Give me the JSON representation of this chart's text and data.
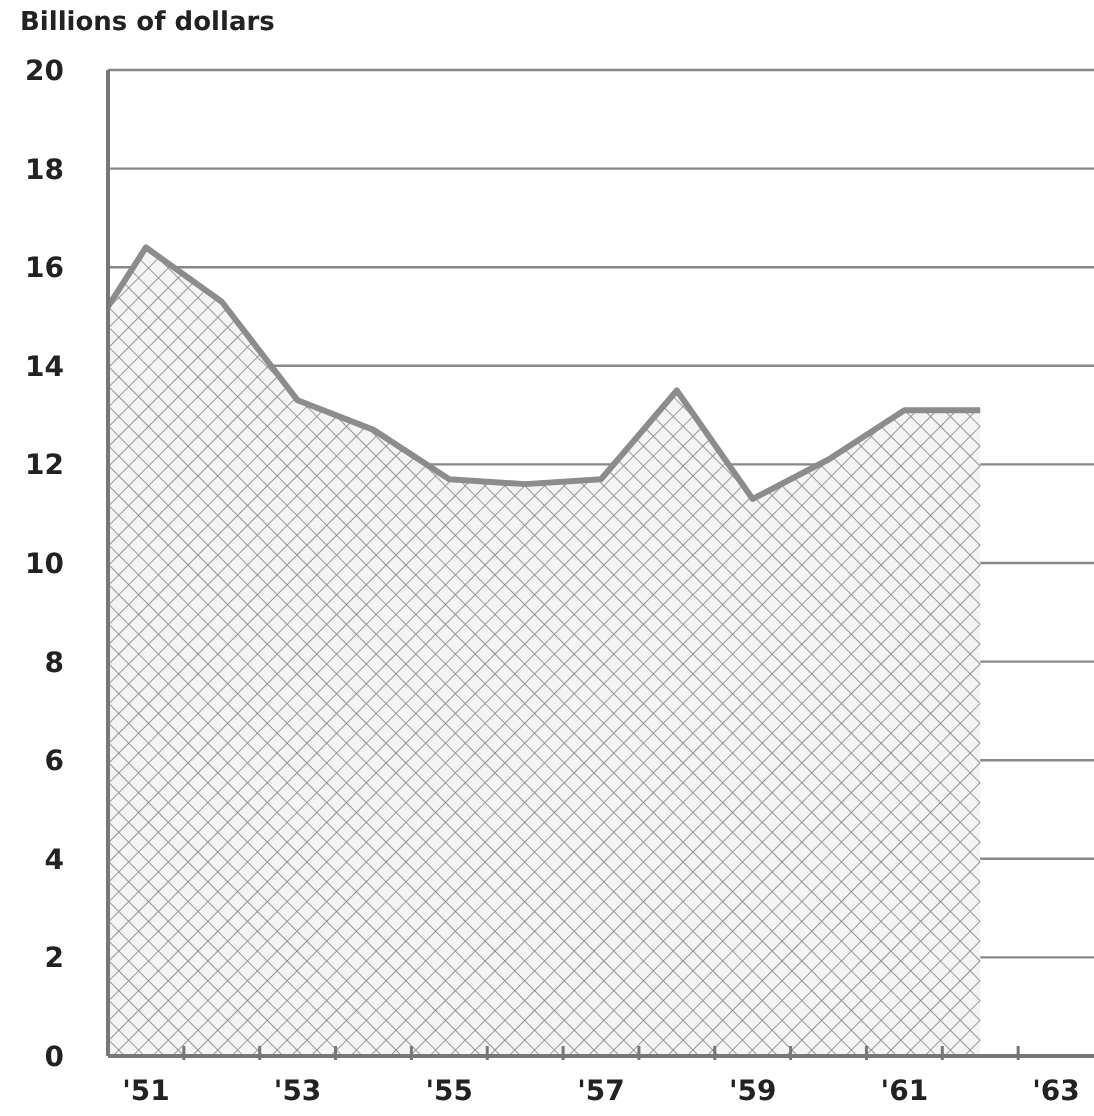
{
  "chart_data": {
    "type": "area",
    "ylabel": "Billions of dollars",
    "x": [
      1950.5,
      1951,
      1952,
      1953,
      1954,
      1955,
      1956,
      1957,
      1958,
      1959,
      1960,
      1961,
      1962
    ],
    "series": [
      {
        "color": "#8c8c8c",
        "values": [
          15.2,
          16.4,
          15.3,
          13.3,
          12.7,
          11.7,
          11.6,
          11.7,
          13.5,
          11.3,
          12.1,
          13.1,
          13.1
        ]
      }
    ],
    "xlim": [
      1950.5,
      1963.5
    ],
    "xticks": [
      {
        "value": 1951,
        "label": "'51"
      },
      {
        "value": 1951.5,
        "label": null
      },
      {
        "value": 1952.5,
        "label": null
      },
      {
        "value": 1953,
        "label": "'53"
      },
      {
        "value": 1953.5,
        "label": null
      },
      {
        "value": 1954.5,
        "label": null
      },
      {
        "value": 1955,
        "label": "'55"
      },
      {
        "value": 1955.5,
        "label": null
      },
      {
        "value": 1956.5,
        "label": null
      },
      {
        "value": 1957,
        "label": "'57"
      },
      {
        "value": 1957.5,
        "label": null
      },
      {
        "value": 1958.5,
        "label": null
      },
      {
        "value": 1959,
        "label": "'59"
      },
      {
        "value": 1959.5,
        "label": null
      },
      {
        "value": 1960.5,
        "label": null
      },
      {
        "value": 1961,
        "label": "'61"
      },
      {
        "value": 1961.5,
        "label": null
      },
      {
        "value": 1962.5,
        "label": null
      },
      {
        "value": 1963,
        "label": "'63"
      }
    ],
    "ylim": [
      0,
      20
    ],
    "yticks": [
      0,
      2,
      4,
      6,
      8,
      10,
      12,
      14,
      16,
      18,
      20
    ],
    "grid": "y",
    "legend": false
  }
}
